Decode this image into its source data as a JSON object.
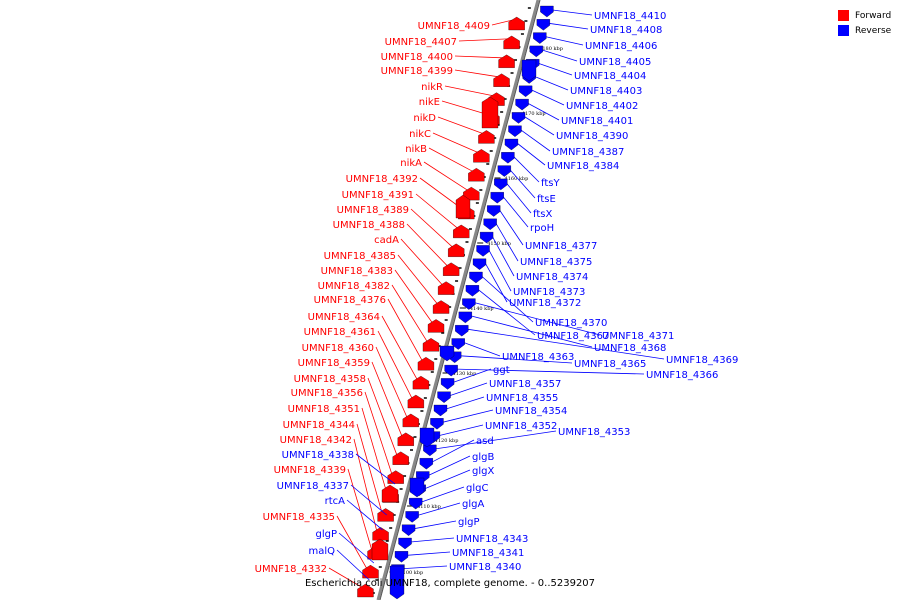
{
  "legend": {
    "items": [
      {
        "label": "Forward",
        "color": "#ff0000"
      },
      {
        "label": "Reverse",
        "color": "#0000ff"
      }
    ]
  },
  "caption": "Escherichia coli UMNF18, complete genome. - 0..5239207",
  "colors": {
    "forward": "#ff0000",
    "reverse": "#0000ff",
    "backbone": "#888888",
    "leader": "#000000"
  },
  "diagram_data": {
    "type": "genome-map-segment",
    "genome": "Escherichia coli UMNF18",
    "tick_labels": [
      "4180 kbp",
      "4170 kbp",
      "4160 kbp",
      "4150 kbp",
      "4140 kbp",
      "4130 kbp",
      "4120 kbp",
      "4110 kbp",
      "4100 kbp"
    ],
    "forward_genes": [
      "UMNF18_4409",
      "UMNF18_4407",
      "UMNF18_4400",
      "UMNF18_4399",
      "nikR",
      "nikE",
      "nikD",
      "nikC",
      "nikB",
      "nikA",
      "UMNF18_4392",
      "UMNF18_4391",
      "UMNF18_4389",
      "UMNF18_4388",
      "cadA",
      "UMNF18_4385",
      "UMNF18_4383",
      "UMNF18_4382",
      "UMNF18_4376",
      "UMNF18_4364",
      "UMNF18_4361",
      "UMNF18_4360",
      "UMNF18_4359",
      "UMNF18_4358",
      "UMNF18_4356",
      "UMNF18_4351",
      "UMNF18_4344",
      "UMNF18_4342",
      "UMNF18_4339",
      "UMNF18_4335",
      "UMNF18_4332"
    ],
    "reverse_genes_left": [
      "UMNF18_4338",
      "UMNF18_4337",
      "rtcA",
      "glgP",
      "malQ"
    ],
    "reverse_genes": [
      "UMNF18_4410",
      "UMNF18_4408",
      "UMNF18_4406",
      "UMNF18_4405",
      "UMNF18_4404",
      "UMNF18_4403",
      "UMNF18_4402",
      "UMNF18_4401",
      "UMNF18_4390",
      "UMNF18_4387",
      "UMNF18_4384",
      "ftsY",
      "ftsE",
      "ftsX",
      "rpoH",
      "UMNF18_4377",
      "UMNF18_4375",
      "UMNF18_4374",
      "UMNF18_4373",
      "UMNF18_4372",
      "UMNF18_4370",
      "UMNF18_4367",
      "UMNF18_4371",
      "UMNF18_4368",
      "UMNF18_4369",
      "UMNF18_4363",
      "UMNF18_4365",
      "UMNF18_4366",
      "ggt",
      "UMNF18_4357",
      "UMNF18_4355",
      "UMNF18_4354",
      "UMNF18_4352",
      "UMNF18_4353",
      "asd",
      "glgB",
      "glgX",
      "glgC",
      "glgA",
      "glgP",
      "UMNF18_4343",
      "UMNF18_4341",
      "UMNF18_4340"
    ]
  }
}
